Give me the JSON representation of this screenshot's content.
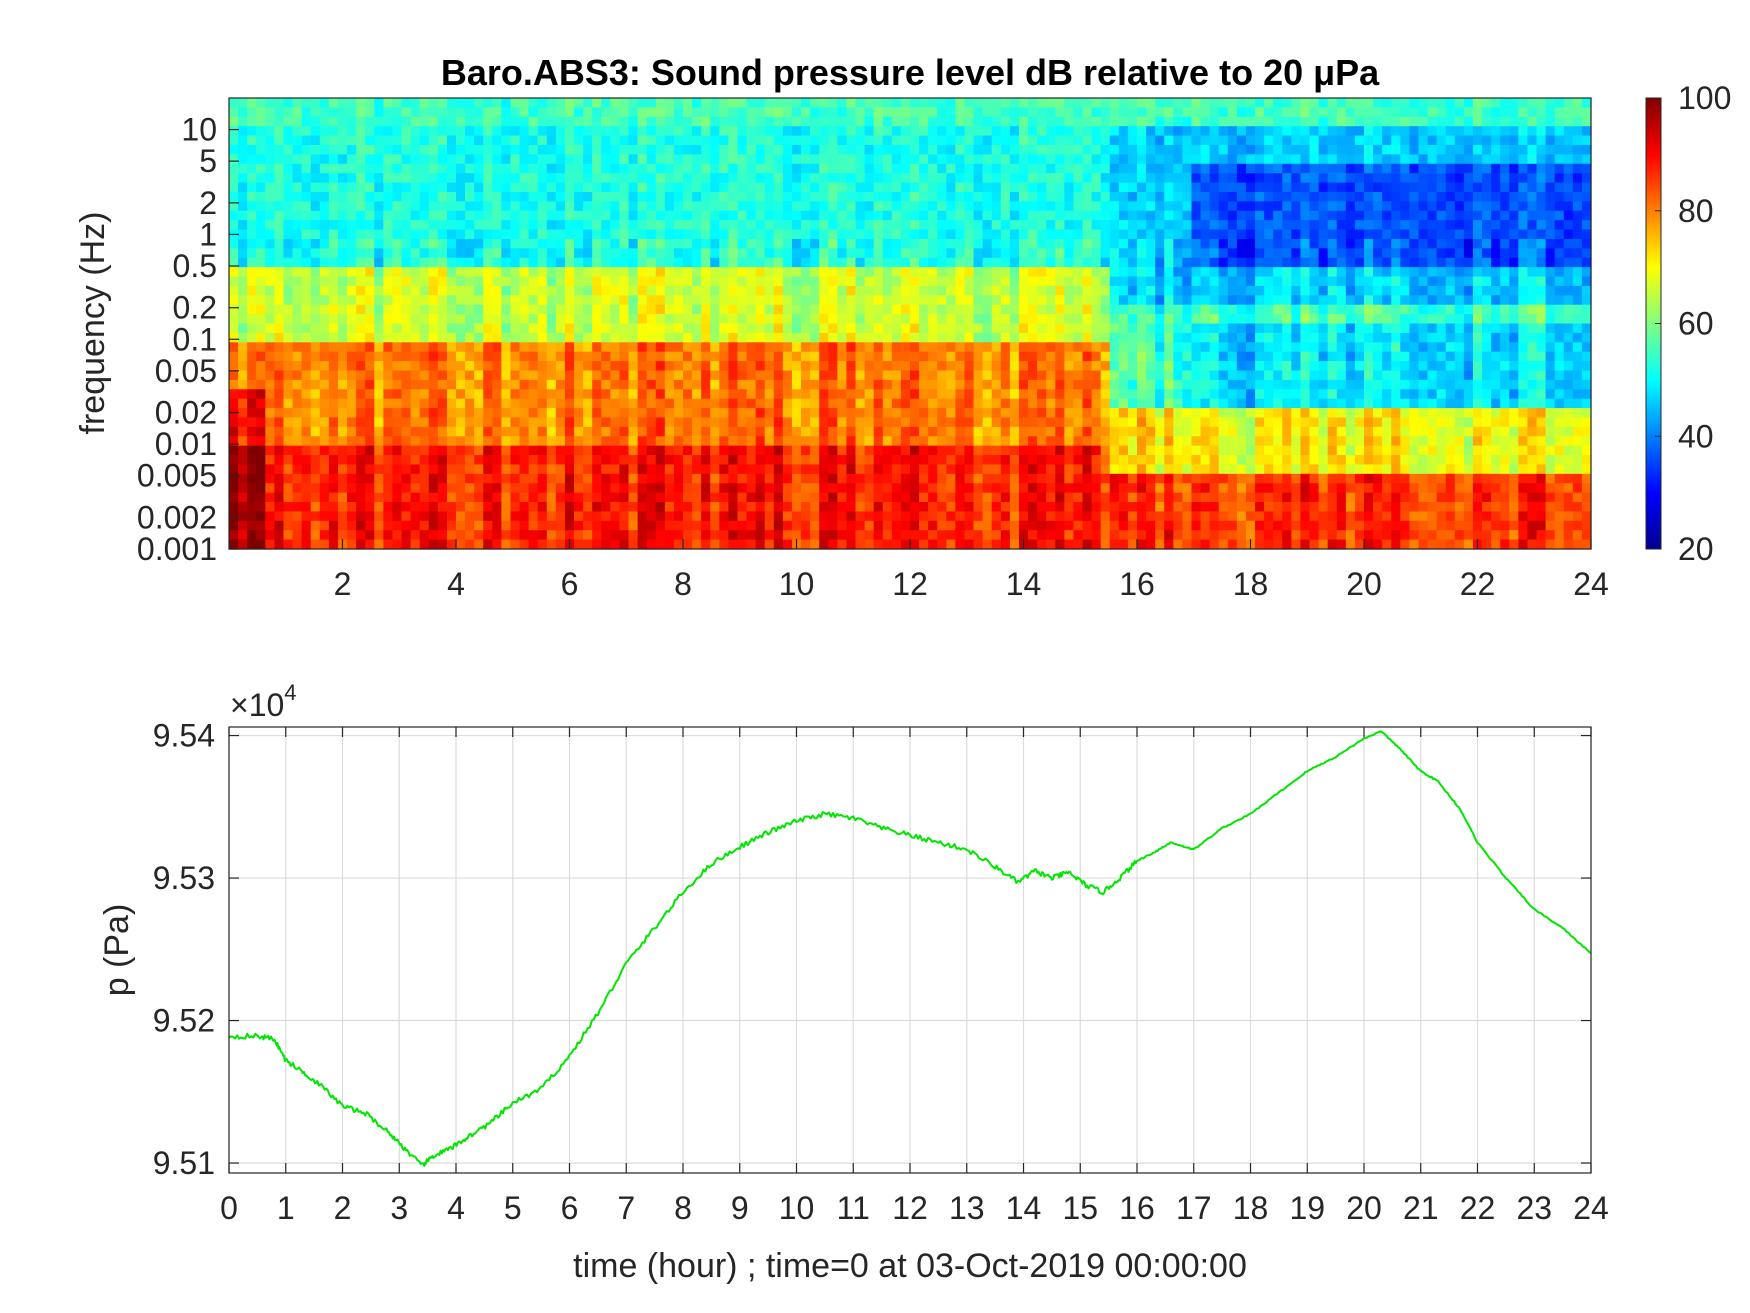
{
  "chart_data": [
    {
      "type": "heatmap",
      "title": "Baro.ABS3: Sound pressure level dB relative to 20 μPa",
      "xlabel": "",
      "ylabel": "frequency (Hz)",
      "x_ticks": [
        "2",
        "4",
        "6",
        "8",
        "10",
        "12",
        "14",
        "16",
        "18",
        "20",
        "22",
        "24"
      ],
      "x_range": [
        0,
        24
      ],
      "y_scale": "log",
      "y_range": [
        0.001,
        20
      ],
      "y_ticks": [
        "0.001",
        "0.002",
        "0.005",
        "0.01",
        "0.02",
        "0.05",
        "0.1",
        "0.2",
        "0.5",
        "1",
        "2",
        "5",
        "10"
      ],
      "colormap": "jet",
      "colorbar": {
        "range": [
          20,
          100
        ],
        "ticks": [
          "20",
          "40",
          "60",
          "80",
          "100"
        ]
      },
      "grid": false,
      "description_of_values": [
        {
          "hours": [
            0,
            15.5
          ],
          "freq_hz": [
            0.001,
            0.01
          ],
          "level_db": 88
        },
        {
          "hours": [
            0,
            15.5
          ],
          "freq_hz": [
            0.01,
            0.1
          ],
          "level_db": 80
        },
        {
          "hours": [
            0,
            15.5
          ],
          "freq_hz": [
            0.1,
            0.5
          ],
          "level_db": 66
        },
        {
          "hours": [
            0,
            15.5
          ],
          "freq_hz": [
            0.5,
            5
          ],
          "level_db": 52
        },
        {
          "hours": [
            15.5,
            24
          ],
          "freq_hz": [
            0.001,
            0.005
          ],
          "level_db": 86
        },
        {
          "hours": [
            17,
            24
          ],
          "freq_hz": [
            0.005,
            0.02
          ],
          "level_db": 70
        },
        {
          "hours": [
            17,
            24
          ],
          "freq_hz": [
            0.02,
            0.15
          ],
          "level_db": 48
        },
        {
          "hours": [
            17,
            24
          ],
          "freq_hz": [
            0.5,
            5
          ],
          "level_db": 36
        },
        {
          "hours": [
            0,
            24
          ],
          "freq_hz": [
            10,
            20
          ],
          "level_db": 55
        }
      ]
    },
    {
      "type": "line",
      "title": "",
      "xlabel": "time (hour) ; time=0 at 03-Oct-2019 00:00:00",
      "ylabel": "p (Pa)",
      "y_multiplier": "×10",
      "y_multiplier_exponent": "4",
      "x_ticks": [
        "0",
        "1",
        "2",
        "3",
        "4",
        "5",
        "6",
        "7",
        "8",
        "9",
        "10",
        "11",
        "12",
        "13",
        "14",
        "15",
        "16",
        "17",
        "18",
        "19",
        "20",
        "21",
        "22",
        "23",
        "24"
      ],
      "y_ticks": [
        "9.51",
        "9.52",
        "9.53",
        "9.54"
      ],
      "xlim": [
        0,
        24
      ],
      "ylim": [
        9.5093,
        9.5406
      ],
      "grid": true,
      "color": "#00e600",
      "series": [
        {
          "x": [
            0,
            0.5,
            0.8,
            1.0,
            1.3,
            1.6,
            2.0,
            2.4,
            2.8,
            3.1,
            3.4,
            3.6,
            3.9,
            4.2,
            4.6,
            5.0,
            5.5,
            6.0,
            6.5,
            7.0,
            7.5,
            8.0,
            8.5,
            9.0,
            9.5,
            10.0,
            10.5,
            11.0,
            11.5,
            12.0,
            12.5,
            13.0,
            13.5,
            13.9,
            14.2,
            14.5,
            14.8,
            15.1,
            15.4,
            15.7,
            16.0,
            16.3,
            16.6,
            17.0,
            17.5,
            18.0,
            18.5,
            19.0,
            19.5,
            20.0,
            20.3,
            20.6,
            21.0,
            21.3,
            21.7,
            22.0,
            22.5,
            23.0,
            23.5,
            24.0
          ],
          "y": [
            9.5189,
            9.5189,
            9.5187,
            9.5172,
            9.5164,
            9.5155,
            9.514,
            9.5135,
            9.5122,
            9.511,
            9.5098,
            9.5105,
            9.511,
            9.5118,
            9.5128,
            9.5142,
            9.5152,
            9.5175,
            9.5205,
            9.524,
            9.5265,
            9.529,
            9.531,
            9.5322,
            9.5332,
            9.534,
            9.5345,
            9.5342,
            9.5335,
            9.533,
            9.5325,
            9.532,
            9.5308,
            9.5297,
            9.5305,
            9.53,
            9.5304,
            9.5295,
            9.529,
            9.53,
            9.5312,
            9.5318,
            9.5325,
            9.532,
            9.5335,
            9.5345,
            9.536,
            9.5375,
            9.5385,
            9.5398,
            9.5403,
            9.5392,
            9.5375,
            9.5368,
            9.5348,
            9.5325,
            9.53,
            9.5278,
            9.5265,
            9.5247
          ]
        }
      ]
    }
  ]
}
